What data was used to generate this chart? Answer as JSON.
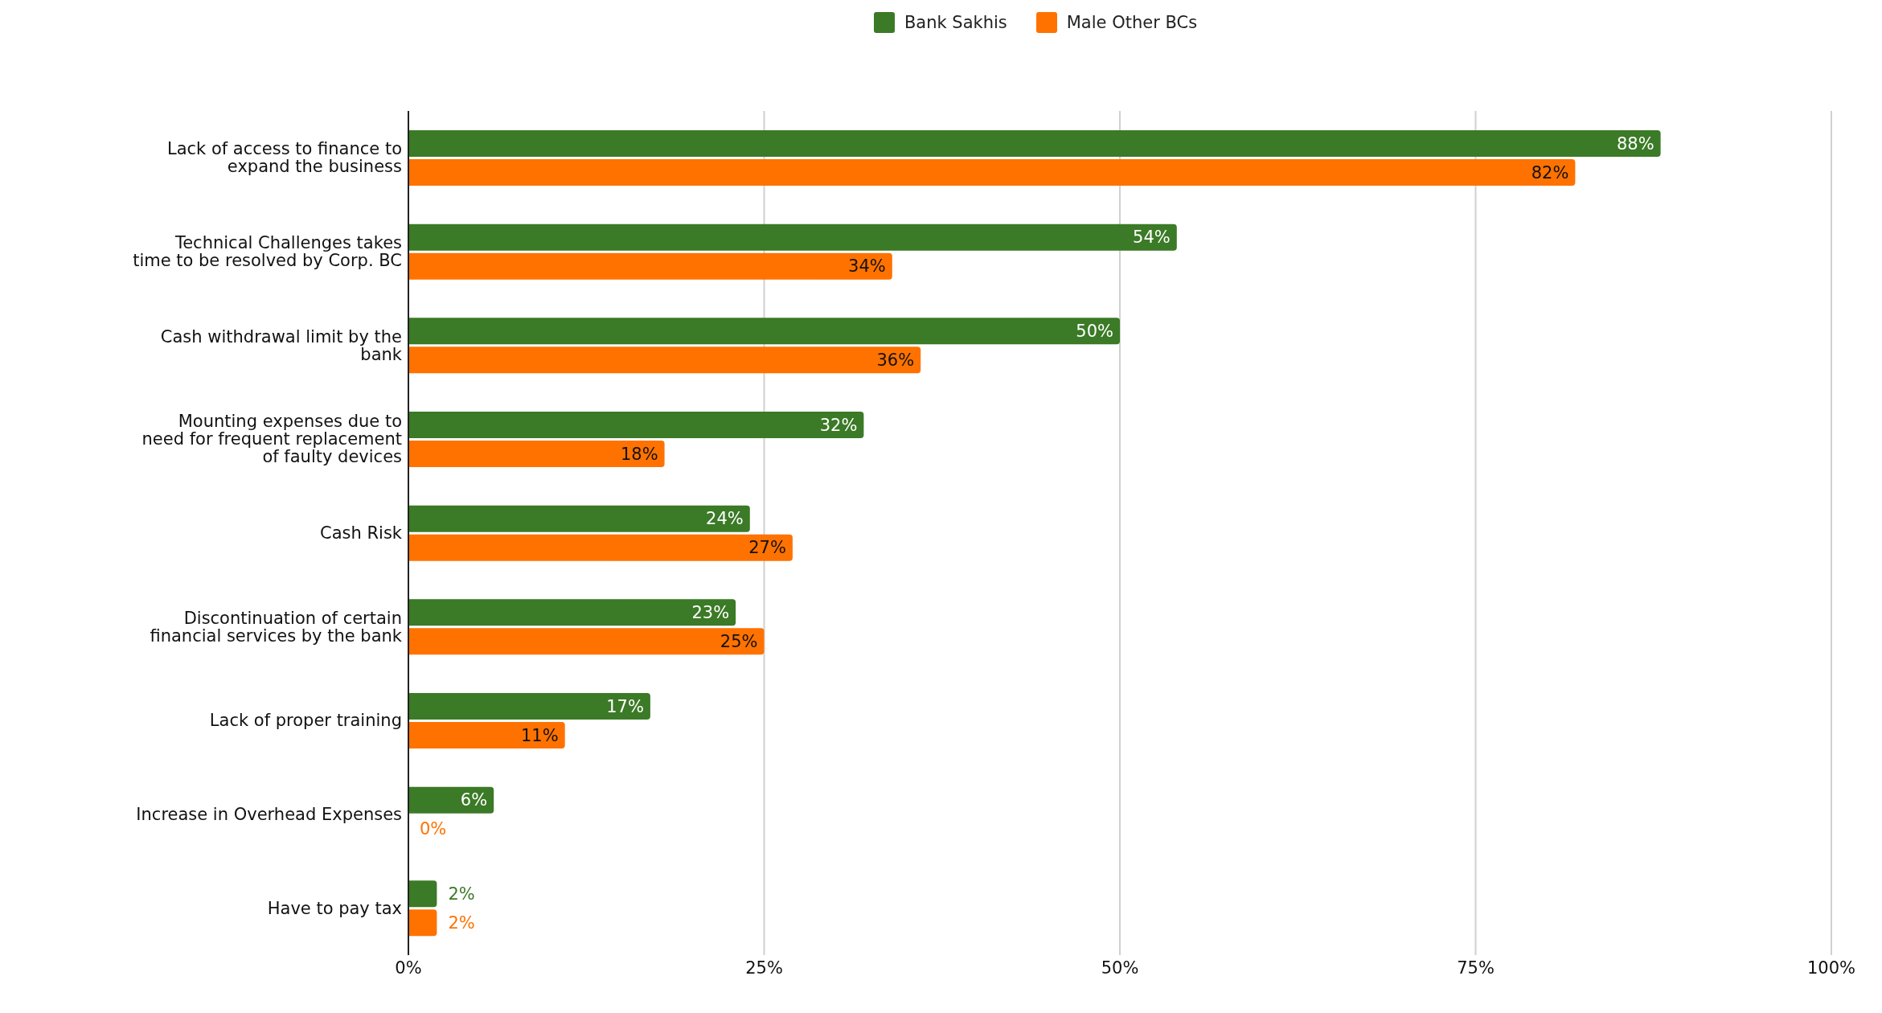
{
  "chart_data": {
    "type": "bar",
    "orientation": "horizontal",
    "categories": [
      "Lack of access to finance to expand the business",
      "Technical Challenges takes time to be resolved by Corp. BC",
      "Cash withdrawal limit by the bank",
      "Mounting expenses due to need for frequent replacement of faulty devices",
      "Cash Risk",
      "Discontinuation of certain financial services by the bank",
      "Lack of proper training",
      "Increase in Overhead Expenses",
      "Have to pay tax"
    ],
    "series": [
      {
        "name": "Bank Sakhis",
        "color": "#3b7a26",
        "values": [
          88,
          54,
          50,
          32,
          24,
          23,
          17,
          6,
          2
        ],
        "value_labels": [
          "88%",
          "54%",
          "50%",
          "32%",
          "24%",
          "23%",
          "17%",
          "6%",
          "2%"
        ]
      },
      {
        "name": "Male Other BCs",
        "color": "#ff7200",
        "values": [
          82,
          34,
          36,
          18,
          27,
          25,
          11,
          0,
          2
        ],
        "value_labels": [
          "82%",
          "34%",
          "36%",
          "18%",
          "27%",
          "25%",
          "11%",
          "0%",
          "2%"
        ]
      }
    ],
    "xlim": [
      0,
      100
    ],
    "xticks": [
      {
        "value": 0,
        "label": "0%"
      },
      {
        "value": 25,
        "label": "25%"
      },
      {
        "value": 50,
        "label": "50%"
      },
      {
        "value": 75,
        "label": "75%"
      },
      {
        "value": 100,
        "label": "100%"
      }
    ],
    "grid": "x",
    "legend": "top"
  }
}
